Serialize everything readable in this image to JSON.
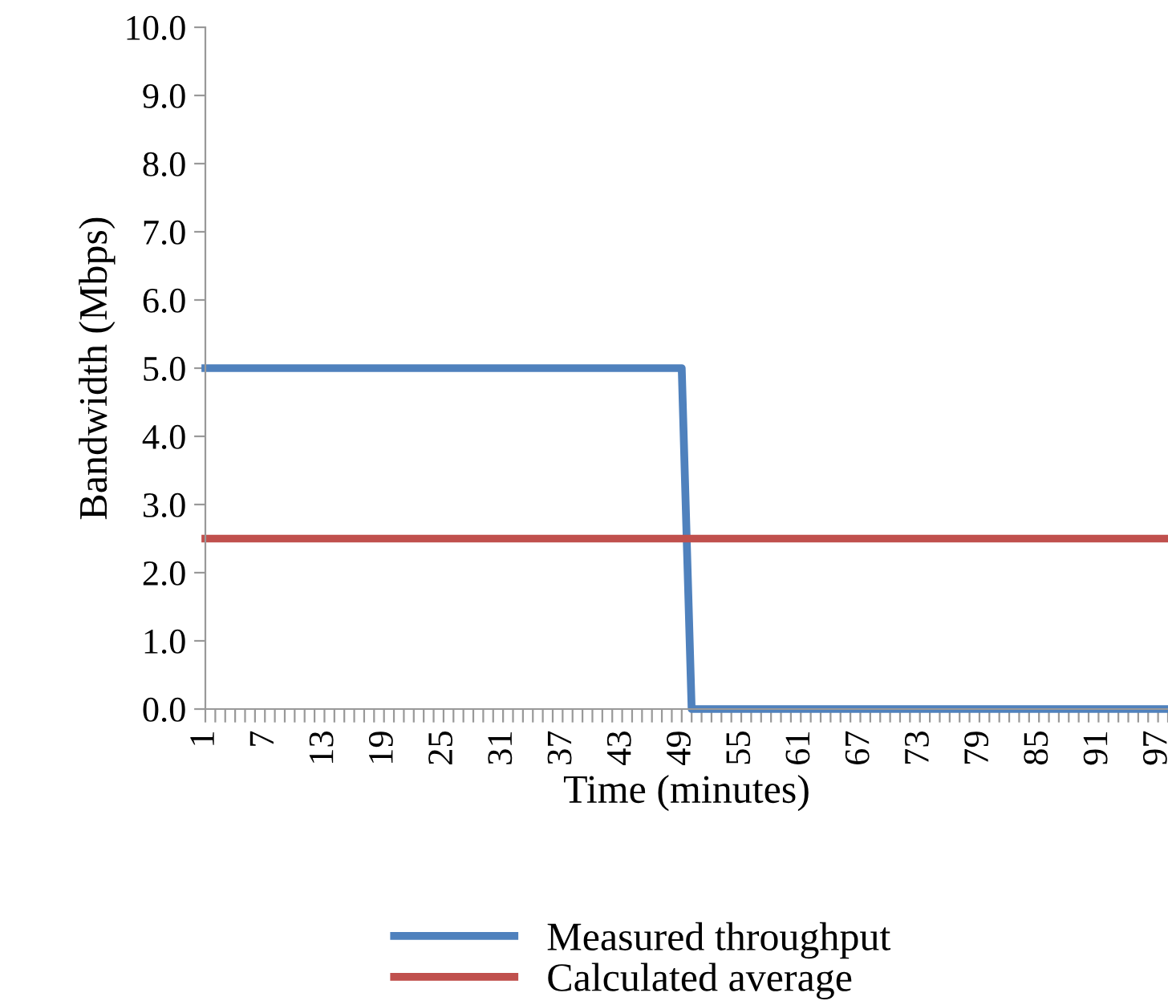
{
  "chart_data": {
    "type": "line",
    "xlabel": "Time (minutes)",
    "ylabel": "Bandwidth (Mbps)",
    "categories": [
      "1",
      null,
      null,
      null,
      null,
      null,
      "7",
      null,
      null,
      null,
      null,
      null,
      "13",
      null,
      null,
      null,
      null,
      null,
      "19",
      null,
      null,
      null,
      null,
      null,
      "25",
      null,
      null,
      null,
      null,
      null,
      "31",
      null,
      null,
      null,
      null,
      null,
      "37",
      null,
      null,
      null,
      null,
      null,
      "43",
      null,
      null,
      null,
      null,
      null,
      "49",
      null,
      null,
      null,
      null,
      null,
      "55",
      null,
      null,
      null,
      null,
      null,
      "61",
      null,
      null,
      null,
      null,
      null,
      "67",
      null,
      null,
      null,
      null,
      null,
      "73",
      null,
      null,
      null,
      null,
      null,
      "79",
      null,
      null,
      null,
      null,
      null,
      "85",
      null,
      null,
      null,
      null,
      null,
      "91",
      null,
      null,
      null,
      null,
      null,
      "97",
      null
    ],
    "series": [
      {
        "name": "Measured throughput",
        "color": "#4f81bd",
        "values": [
          5,
          5,
          5,
          5,
          5,
          5,
          5,
          5,
          5,
          5,
          5,
          5,
          5,
          5,
          5,
          5,
          5,
          5,
          5,
          5,
          5,
          5,
          5,
          5,
          5,
          5,
          5,
          5,
          5,
          5,
          5,
          5,
          5,
          5,
          5,
          5,
          5,
          5,
          5,
          5,
          5,
          5,
          5,
          5,
          5,
          5,
          5,
          5,
          5,
          0,
          0,
          0,
          0,
          0,
          0,
          0,
          0,
          0,
          0,
          0,
          0,
          0,
          0,
          0,
          0,
          0,
          0,
          0,
          0,
          0,
          0,
          0,
          0,
          0,
          0,
          0,
          0,
          0,
          0,
          0,
          0,
          0,
          0,
          0,
          0,
          0,
          0,
          0,
          0,
          0,
          0,
          0,
          0,
          0,
          0,
          0,
          0,
          0
        ]
      },
      {
        "name": "Calculated average",
        "color": "#c0504d",
        "values": [
          2.5,
          2.5,
          2.5,
          2.5,
          2.5,
          2.5,
          2.5,
          2.5,
          2.5,
          2.5,
          2.5,
          2.5,
          2.5,
          2.5,
          2.5,
          2.5,
          2.5,
          2.5,
          2.5,
          2.5,
          2.5,
          2.5,
          2.5,
          2.5,
          2.5,
          2.5,
          2.5,
          2.5,
          2.5,
          2.5,
          2.5,
          2.5,
          2.5,
          2.5,
          2.5,
          2.5,
          2.5,
          2.5,
          2.5,
          2.5,
          2.5,
          2.5,
          2.5,
          2.5,
          2.5,
          2.5,
          2.5,
          2.5,
          2.5,
          2.5,
          2.5,
          2.5,
          2.5,
          2.5,
          2.5,
          2.5,
          2.5,
          2.5,
          2.5,
          2.5,
          2.5,
          2.5,
          2.5,
          2.5,
          2.5,
          2.5,
          2.5,
          2.5,
          2.5,
          2.5,
          2.5,
          2.5,
          2.5,
          2.5,
          2.5,
          2.5,
          2.5,
          2.5,
          2.5,
          2.5,
          2.5,
          2.5,
          2.5,
          2.5,
          2.5,
          2.5,
          2.5,
          2.5,
          2.5,
          2.5,
          2.5,
          2.5,
          2.5,
          2.5,
          2.5,
          2.5,
          2.5,
          2.5
        ]
      }
    ],
    "ylim": [
      0,
      10
    ],
    "yticks": [
      {
        "value": 0,
        "label": "0.0"
      },
      {
        "value": 1,
        "label": "1.0"
      },
      {
        "value": 2,
        "label": "2.0"
      },
      {
        "value": 3,
        "label": "3.0"
      },
      {
        "value": 4,
        "label": "4.0"
      },
      {
        "value": 5,
        "label": "5.0"
      },
      {
        "value": 6,
        "label": "6.0"
      },
      {
        "value": 7,
        "label": "7.0"
      },
      {
        "value": 8,
        "label": "8.0"
      },
      {
        "value": 9,
        "label": "9.0"
      },
      {
        "value": 10,
        "label": "10.0"
      }
    ],
    "grid": false,
    "legend": "bottom",
    "marker": "none",
    "line_style": "solid"
  }
}
